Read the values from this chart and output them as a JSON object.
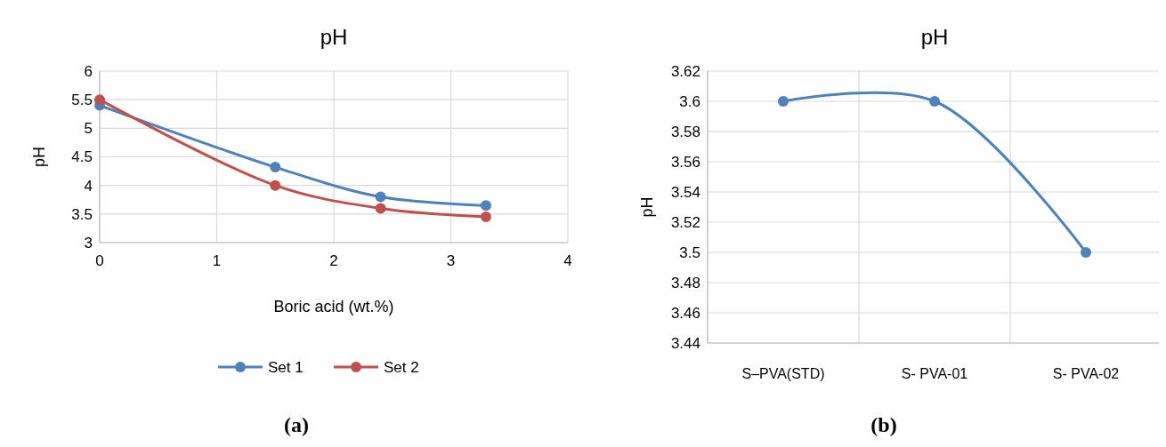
{
  "chart_data": [
    {
      "type": "line",
      "title": "pH",
      "xlabel": "Boric acid (wt.%)",
      "ylabel": "pH",
      "x": [
        0,
        1.5,
        2.4,
        3.3
      ],
      "xlim": [
        0,
        4
      ],
      "xticks": [
        0,
        1,
        2,
        3,
        4
      ],
      "ylim": [
        3,
        6
      ],
      "yticks": [
        3,
        3.5,
        4,
        4.5,
        5,
        5.5,
        6
      ],
      "grid": true,
      "legend": "bottom",
      "marker": "circle",
      "annotations": [
        "(a)"
      ],
      "series": [
        {
          "name": "Set 1",
          "color": "#4f81bd",
          "values": [
            5.4,
            4.32,
            3.8,
            3.65
          ]
        },
        {
          "name": "Set 2",
          "color": "#c0504d",
          "values": [
            5.5,
            4.0,
            3.6,
            3.45
          ]
        }
      ]
    },
    {
      "type": "line",
      "title": "pH",
      "ylabel": "pH",
      "categories": [
        "S–PVA(STD)",
        "S- PVA-01",
        "S- PVA-02"
      ],
      "ylim": [
        3.44,
        3.62
      ],
      "yticks": [
        3.44,
        3.46,
        3.48,
        3.5,
        3.52,
        3.54,
        3.56,
        3.58,
        3.6,
        3.62
      ],
      "grid": true,
      "marker": "circle",
      "annotations": [
        "(b)"
      ],
      "series": [
        {
          "color": "#4f81bd",
          "values": [
            3.6,
            3.6,
            3.5
          ]
        }
      ]
    }
  ]
}
